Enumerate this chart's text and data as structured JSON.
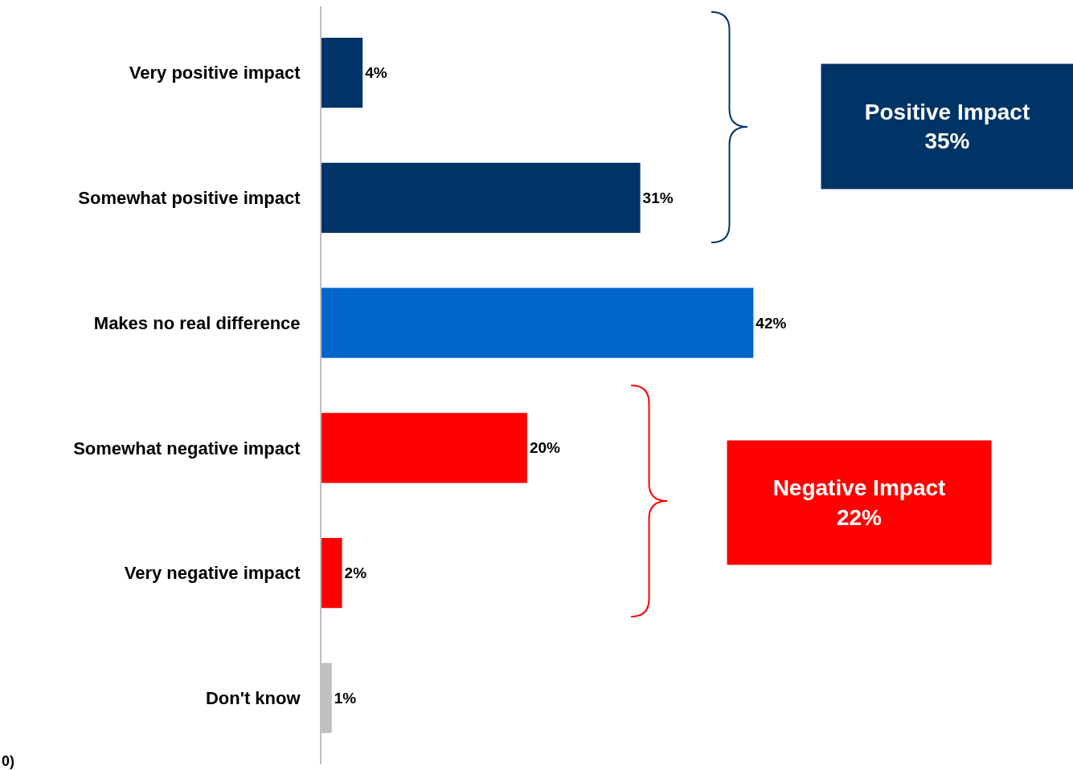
{
  "chart_data": {
    "type": "bar",
    "orientation": "horizontal",
    "categories": [
      "Very positive impact",
      "Somewhat positive impact",
      "Makes no real difference",
      "Somewhat negative impact",
      "Very negative impact",
      "Don't know"
    ],
    "values": [
      4,
      31,
      42,
      20,
      2,
      1
    ],
    "colors": [
      "#003366",
      "#003366",
      "#0066cc",
      "#ff0000",
      "#ff0000",
      "#c0c0c0"
    ],
    "value_labels": [
      "4%",
      "31%",
      "42%",
      "20%",
      "2%",
      "1%"
    ],
    "annotations": [
      "Positive Impact\n35%",
      "Negative Impact\n22%",
      "0)"
    ]
  }
}
